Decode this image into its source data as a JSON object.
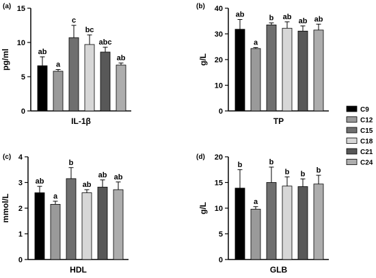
{
  "legend": [
    {
      "name": "C9",
      "color": "#000000"
    },
    {
      "name": "C12",
      "color": "#9a9a9a"
    },
    {
      "name": "C15",
      "color": "#6f6f6f"
    },
    {
      "name": "C18",
      "color": "#d7d7d7"
    },
    {
      "name": "C21",
      "color": "#585858"
    },
    {
      "name": "C24",
      "color": "#adadad"
    }
  ],
  "chart_data": [
    {
      "type": "bar",
      "panel": "(a)",
      "categories": [
        "C9",
        "C12",
        "C15",
        "C18",
        "C21",
        "C24"
      ],
      "values": [
        6.6,
        5.8,
        10.7,
        9.7,
        8.6,
        6.7
      ],
      "errors": [
        1.3,
        0.25,
        1.8,
        1.4,
        0.7,
        0.3
      ],
      "labels": [
        "ab",
        "a",
        "c",
        "bc",
        "abc",
        "ab"
      ],
      "xlabel": "IL-1β",
      "ylabel": "pg/ml",
      "ylim": [
        0,
        15
      ],
      "yticks": [
        0,
        5,
        10,
        15
      ]
    },
    {
      "type": "bar",
      "panel": "(b)",
      "categories": [
        "C9",
        "C12",
        "C15",
        "C18",
        "C21",
        "C24"
      ],
      "values": [
        31.8,
        24.3,
        33.5,
        32.2,
        31.1,
        31.5
      ],
      "errors": [
        3.8,
        0.4,
        0.8,
        2.5,
        2.0,
        2.3
      ],
      "labels": [
        "ab",
        "a",
        "b",
        "ab",
        "ab",
        "ab"
      ],
      "xlabel": "TP",
      "ylabel": "g/L",
      "ylim": [
        0,
        40
      ],
      "yticks": [
        0,
        10,
        20,
        30,
        40
      ]
    },
    {
      "type": "bar",
      "panel": "(c)",
      "categories": [
        "C9",
        "C12",
        "C15",
        "C18",
        "C21",
        "C24"
      ],
      "values": [
        2.6,
        2.15,
        3.15,
        2.6,
        2.82,
        2.72
      ],
      "errors": [
        0.25,
        0.12,
        0.43,
        0.12,
        0.28,
        0.3
      ],
      "labels": [
        "ab",
        "a",
        "b",
        "ab",
        "ab",
        "ab"
      ],
      "xlabel": "HDL",
      "ylabel": "mmol/L",
      "ylim": [
        0,
        4
      ],
      "yticks": [
        0,
        1,
        2,
        3,
        4
      ]
    },
    {
      "type": "bar",
      "panel": "(d)",
      "categories": [
        "C9",
        "C12",
        "C15",
        "C18",
        "C21",
        "C24"
      ],
      "values": [
        13.9,
        9.8,
        15.0,
        14.3,
        14.2,
        14.7
      ],
      "errors": [
        3.6,
        0.5,
        3.0,
        1.8,
        1.5,
        1.7
      ],
      "labels": [
        "b",
        "a",
        "b",
        "b",
        "b",
        "b"
      ],
      "xlabel": "GLB",
      "ylabel": "g/L",
      "ylim": [
        0,
        20
      ],
      "yticks": [
        0,
        5,
        10,
        15,
        20
      ]
    }
  ]
}
